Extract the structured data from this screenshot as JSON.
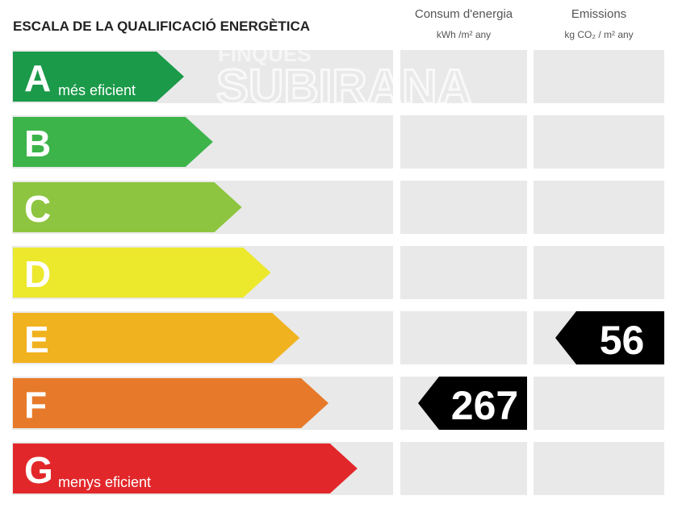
{
  "title": "ESCALA DE LA QUALIFICACIÓ ENERGÈTICA",
  "watermark": [
    "FINQUES",
    "SUBIRANA"
  ],
  "columns": [
    {
      "title": "Consum d'energia",
      "unit": "kWh /m² any",
      "rating": {
        "letter": "F",
        "value": 267
      }
    },
    {
      "title": "Emissions",
      "unit": "kg CO₂ / m² any",
      "rating": {
        "letter": "E",
        "value": 56
      }
    }
  ],
  "rows": [
    {
      "letter": "A",
      "note": "més eficient",
      "color": "#1b9a4a"
    },
    {
      "letter": "B",
      "color": "#3cb44a"
    },
    {
      "letter": "C",
      "color": "#8dc540"
    },
    {
      "letter": "D",
      "color": "#ece82c"
    },
    {
      "letter": "E",
      "color": "#f1b21f"
    },
    {
      "letter": "F",
      "color": "#e77a2a"
    },
    {
      "letter": "G",
      "note": "menys eficient",
      "color": "#e2272a"
    }
  ]
}
